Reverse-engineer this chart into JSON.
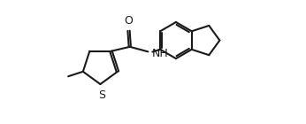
{
  "bg_color": "#ffffff",
  "line_color": "#1a1a1a",
  "line_width": 1.5,
  "font_size": 8.5,
  "fig_width": 3.46,
  "fig_height": 1.4,
  "dpi": 100,
  "xlim": [
    0.0,
    9.5
  ],
  "ylim": [
    -0.5,
    3.8
  ]
}
